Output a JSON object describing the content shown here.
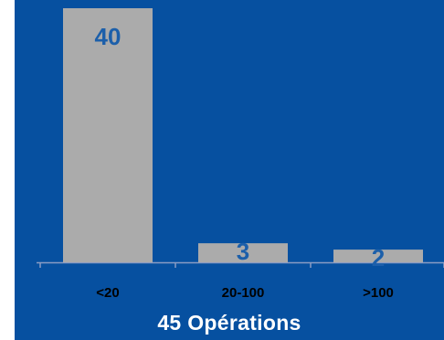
{
  "chart_data": {
    "type": "bar",
    "categories": [
      "<20",
      "20-100",
      ">100"
    ],
    "values": [
      40,
      3,
      2
    ],
    "data_labels": [
      "40",
      "3",
      "2"
    ],
    "ylim": [
      0,
      40
    ],
    "grid": false,
    "colors": {
      "background": "#0650a0",
      "bar": "#ababab",
      "label": "#1c5faa",
      "axis": "#8a9cc4"
    }
  },
  "caption": "45  Opérations"
}
